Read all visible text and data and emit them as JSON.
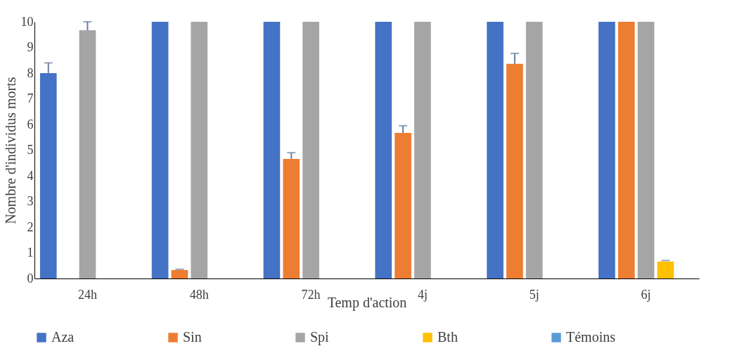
{
  "chart_data": {
    "type": "bar",
    "xlabel": "Temp d'action",
    "ylabel": "Nombre d'individus morts",
    "categories": [
      "24h",
      "48h",
      "72h",
      "4j",
      "5j",
      "6j"
    ],
    "series": [
      {
        "name": "Aza",
        "color": "#4472c4",
        "values": [
          8,
          10,
          10,
          10,
          10,
          10
        ],
        "errors": [
          [
            8,
            8.4
          ],
          null,
          null,
          null,
          null,
          null
        ]
      },
      {
        "name": "Sin",
        "color": "#ed7d31",
        "values": [
          0,
          0.33,
          4.66,
          5.67,
          8.36,
          10
        ],
        "errors": [
          null,
          [
            0.33,
            0.36
          ],
          [
            4.66,
            4.9
          ],
          [
            5.67,
            5.95
          ],
          [
            8.36,
            8.77
          ],
          null
        ]
      },
      {
        "name": "Spi",
        "color": "#a5a5a5",
        "values": [
          9.67,
          10,
          10,
          10,
          10,
          10
        ],
        "errors": [
          [
            9.67,
            10
          ],
          null,
          null,
          null,
          null,
          null
        ]
      },
      {
        "name": "Bth",
        "color": "#ffc000",
        "values": [
          0,
          0,
          0,
          0,
          0,
          0.66
        ],
        "errors": [
          null,
          null,
          null,
          null,
          null,
          [
            0.66,
            0.7
          ]
        ]
      },
      {
        "name": "Témoins",
        "color": "#5b9bd5",
        "values": [
          0,
          0,
          0,
          0,
          0,
          0
        ]
      }
    ],
    "ylim": [
      0,
      10
    ],
    "yticks": [
      0,
      1,
      2,
      3,
      4,
      5,
      6,
      7,
      8,
      9,
      10
    ],
    "grid": false,
    "legend": "bottom"
  }
}
